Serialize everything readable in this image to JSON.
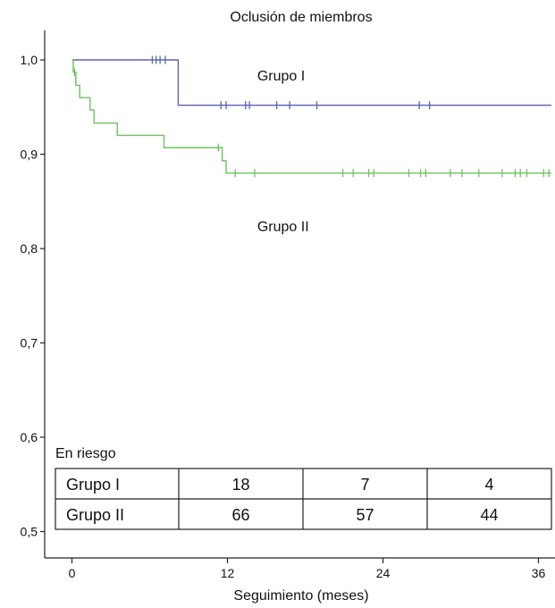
{
  "chart_data": {
    "type": "line",
    "subtype": "kaplan-meier",
    "title": "Oclusión de miembros",
    "xlabel": "Seguimiento (meses)",
    "ylabel": "",
    "xlim": [
      -2,
      37
    ],
    "ylim": [
      0.48,
      1.03
    ],
    "x_ticks": [
      0,
      12,
      24,
      36
    ],
    "y_ticks": [
      {
        "v": 0.5,
        "label": "0,5"
      },
      {
        "v": 0.6,
        "label": "0,6"
      },
      {
        "v": 0.7,
        "label": "0,7"
      },
      {
        "v": 0.8,
        "label": "0,8"
      },
      {
        "v": 0.9,
        "label": "0,9"
      },
      {
        "v": 1.0,
        "label": "1,0"
      }
    ],
    "grid": false,
    "series": [
      {
        "name": "Grupo I",
        "color": "#5a63b0",
        "steps": [
          [
            0,
            1.0
          ],
          [
            8.2,
            0.952
          ],
          [
            37,
            0.952
          ]
        ],
        "censored": [
          6.2,
          6.5,
          6.8,
          7.2,
          11.5,
          11.9,
          13.4,
          13.7,
          15.8,
          16.8,
          18.9,
          26.8,
          27.6
        ]
      },
      {
        "name": "Grupo II",
        "color": "#6cc25e",
        "steps": [
          [
            0,
            1.0
          ],
          [
            0.1,
            0.987
          ],
          [
            0.3,
            0.973
          ],
          [
            0.6,
            0.96
          ],
          [
            1.4,
            0.947
          ],
          [
            1.7,
            0.933
          ],
          [
            3.5,
            0.92
          ],
          [
            7.1,
            0.907
          ],
          [
            11.6,
            0.893
          ],
          [
            11.9,
            0.88
          ],
          [
            37,
            0.88
          ]
        ],
        "censored": [
          0.2,
          11.3,
          12.6,
          14.1,
          20.9,
          21.7,
          22.9,
          23.3,
          26.0,
          26.9,
          27.3,
          29.2,
          30.1,
          31.4,
          33.2,
          34.2,
          34.6,
          35.1,
          36.4,
          36.8
        ]
      }
    ],
    "annotations": [
      {
        "text": "Grupo I",
        "x": 14.3,
        "y": 0.984
      },
      {
        "text": "Grupo II",
        "x": 14.3,
        "y": 0.824
      }
    ],
    "risk_table": {
      "title": "En riesgo",
      "rows": [
        {
          "label": "Grupo I",
          "values": [
            "18",
            "7",
            "4"
          ]
        },
        {
          "label": "Grupo II",
          "values": [
            "66",
            "57",
            "44"
          ]
        }
      ]
    }
  }
}
